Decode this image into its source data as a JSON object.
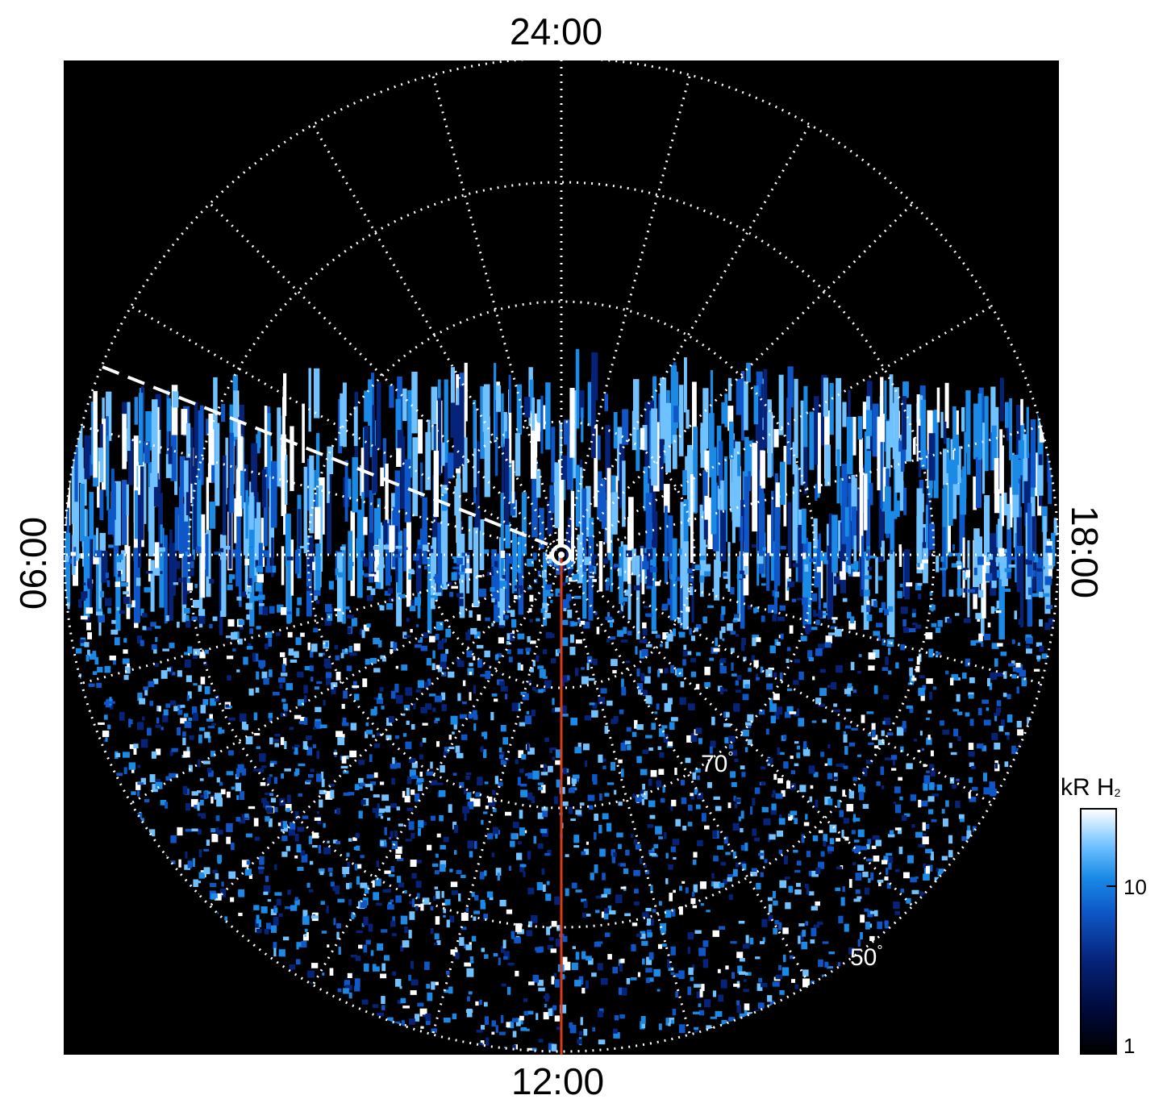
{
  "time_labels": {
    "top": "24:00",
    "bottom": "12:00",
    "left": "06:00",
    "right": "18:00"
  },
  "latitude_labels": {
    "inner": "70",
    "outer": "50",
    "unit": "°"
  },
  "colorbar": {
    "title_main": "kR H",
    "title_sub": "2",
    "tick_high": "10",
    "tick_low": "1",
    "colors": [
      "#000000",
      "#000a3c",
      "#06237a",
      "#0e57c8",
      "#1a8ae6",
      "#6fc1ff",
      "#ffffff"
    ]
  },
  "colors": {
    "background": "#000000",
    "grid": "#ffffff",
    "meridian_line": "#d83a1a"
  }
}
